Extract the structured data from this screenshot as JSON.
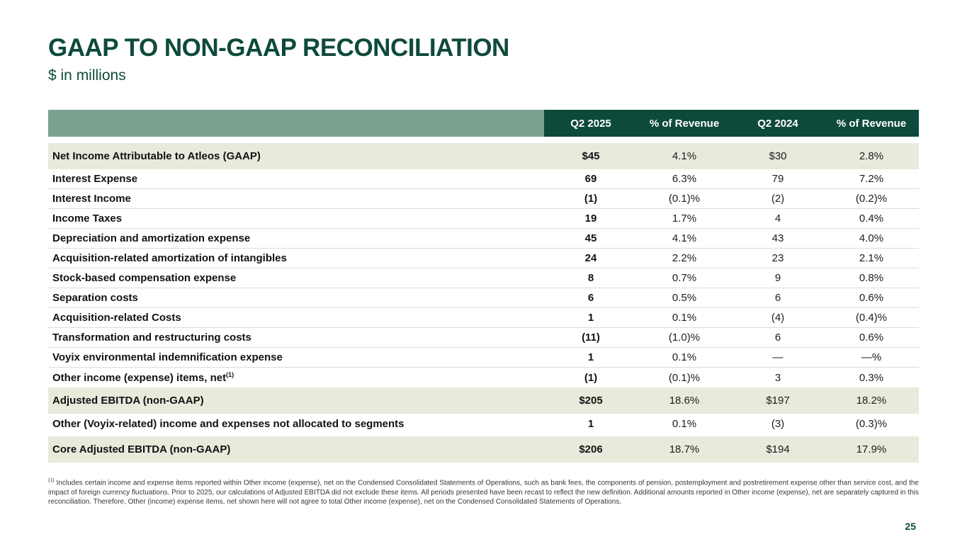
{
  "slide": {
    "title": "GAAP TO NON-GAAP RECONCILIATION",
    "subtitle": "$ in millions",
    "page_number": "25"
  },
  "colors": {
    "green_dark": "#0e4a3b",
    "green_sage": "#7aa18f",
    "green_row_highlight": "#e7ebdc",
    "row_border": "#dcdcdc"
  },
  "table": {
    "columns": [
      "Q2 2025",
      "% of Revenue",
      "Q2 2024",
      "% of Revenue"
    ],
    "rows": [
      {
        "label": "Net Income Attributable to Atleos (GAAP)",
        "values": [
          "$45",
          "4.1%",
          "$30",
          "2.8%"
        ],
        "highlight": true
      },
      {
        "label": "Interest Expense",
        "values": [
          "69",
          "6.3%",
          "79",
          "7.2%"
        ]
      },
      {
        "label": "Interest Income",
        "values": [
          "(1)",
          "(0.1)%",
          "(2)",
          "(0.2)%"
        ]
      },
      {
        "label": "Income Taxes",
        "values": [
          "19",
          "1.7%",
          "4",
          "0.4%"
        ]
      },
      {
        "label": "Depreciation and amortization expense",
        "values": [
          "45",
          "4.1%",
          "43",
          "4.0%"
        ]
      },
      {
        "label": "Acquisition-related amortization of intangibles",
        "values": [
          "24",
          "2.2%",
          "23",
          "2.1%"
        ]
      },
      {
        "label": "Stock-based compensation expense",
        "values": [
          "8",
          "0.7%",
          "9",
          "0.8%"
        ]
      },
      {
        "label": "Separation costs",
        "values": [
          "6",
          "0.5%",
          "6",
          "0.6%"
        ]
      },
      {
        "label": "Acquisition-related Costs",
        "values": [
          "1",
          "0.1%",
          "(4)",
          "(0.4)%"
        ]
      },
      {
        "label": "Transformation and restructuring costs",
        "values": [
          "(11)",
          "(1.0)%",
          "6",
          "0.6%"
        ]
      },
      {
        "label": "Voyix environmental indemnification expense",
        "values": [
          "1",
          "0.1%",
          "—",
          "—%"
        ]
      },
      {
        "label": "Other income (expense) items, net",
        "label_sup": "(1)",
        "values": [
          "(1)",
          "(0.1)%",
          "3",
          "0.3%"
        ]
      },
      {
        "label": "Adjusted EBITDA (non-GAAP)",
        "values": [
          "$205",
          "18.6%",
          "$197",
          "18.2%"
        ],
        "highlight": true
      },
      {
        "label": "Other (Voyix-related) income and expenses not allocated to segments",
        "values": [
          "1",
          "0.1%",
          "(3)",
          "(0.3)%"
        ]
      },
      {
        "label": "Core Adjusted EBITDA (non-GAAP)",
        "values": [
          "$206",
          "18.7%",
          "$194",
          "17.9%"
        ],
        "highlight": true,
        "gap_before": true
      }
    ]
  },
  "footnote": {
    "marker": "(1)",
    "text": "Includes certain income and expense items reported within Other income (expense), net on the Condensed Consolidated Statements of Operations, such as bank fees, the components of pension, postemployment and postretirement expense other than service cost, and the impact of foreign currency fluctuations. Prior to 2025, our calculations of Adjusted EBITDA did not exclude these items. All periods presented have been recast to reflect the new definition. Additional amounts reported in Other income (expense), net are separately captured in this reconciliation. Therefore, Other (income) expense items, net shown here will not agree to total Other income (expense), net on the Condensed Consolidated Statements of Operations."
  }
}
